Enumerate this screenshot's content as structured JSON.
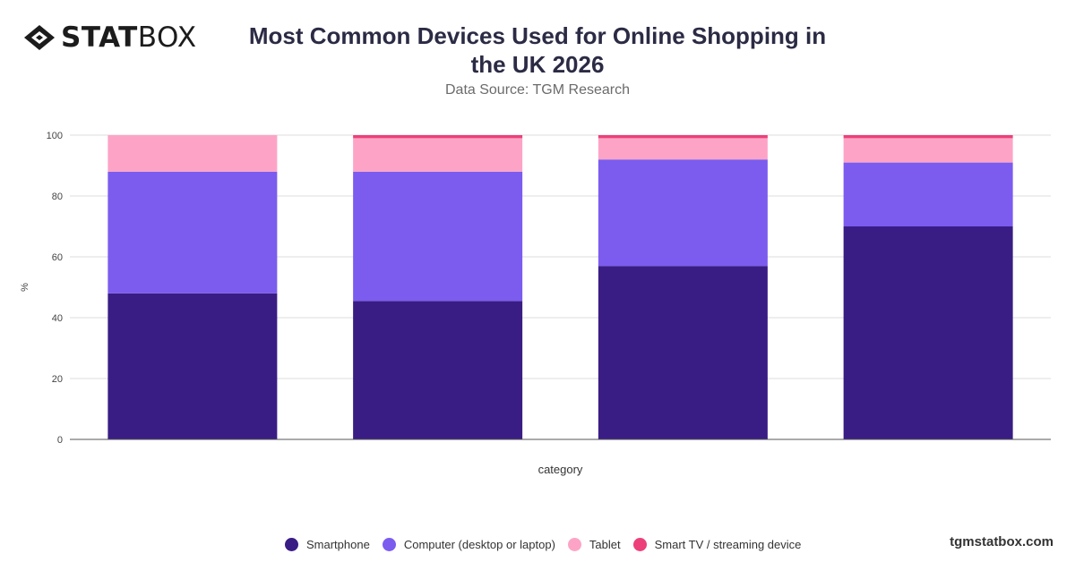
{
  "brand": {
    "logo_bold": "STAT",
    "logo_light": "BOX",
    "website": "tgmstatbox.com"
  },
  "chart_data": {
    "type": "bar",
    "stacked": true,
    "title": "Most Common Devices Used for Online Shopping in the UK 2026",
    "title_line1": "Most Common Devices Used for Online Shopping in",
    "title_line2": "the UK 2026",
    "subtitle": "Data Source: TGM Research",
    "xlabel": "category",
    "ylabel": "%",
    "ylim": [
      0,
      100
    ],
    "yticks": [
      0,
      20,
      40,
      60,
      80,
      100
    ],
    "grid": true,
    "legend_position": "bottom",
    "categories": [
      "",
      "",
      "",
      ""
    ],
    "series": [
      {
        "name": "Smartphone",
        "color": "#391d85",
        "values": [
          48,
          45.5,
          57,
          70
        ]
      },
      {
        "name": "Computer (desktop or laptop)",
        "color": "#7b5cef",
        "values": [
          40,
          42.5,
          35,
          21
        ]
      },
      {
        "name": "Tablet",
        "color": "#fda4c6",
        "values": [
          12,
          11,
          7,
          8
        ]
      },
      {
        "name": "Smart TV / streaming device",
        "color": "#ec407a",
        "values": [
          0,
          1,
          1,
          1
        ]
      }
    ]
  }
}
